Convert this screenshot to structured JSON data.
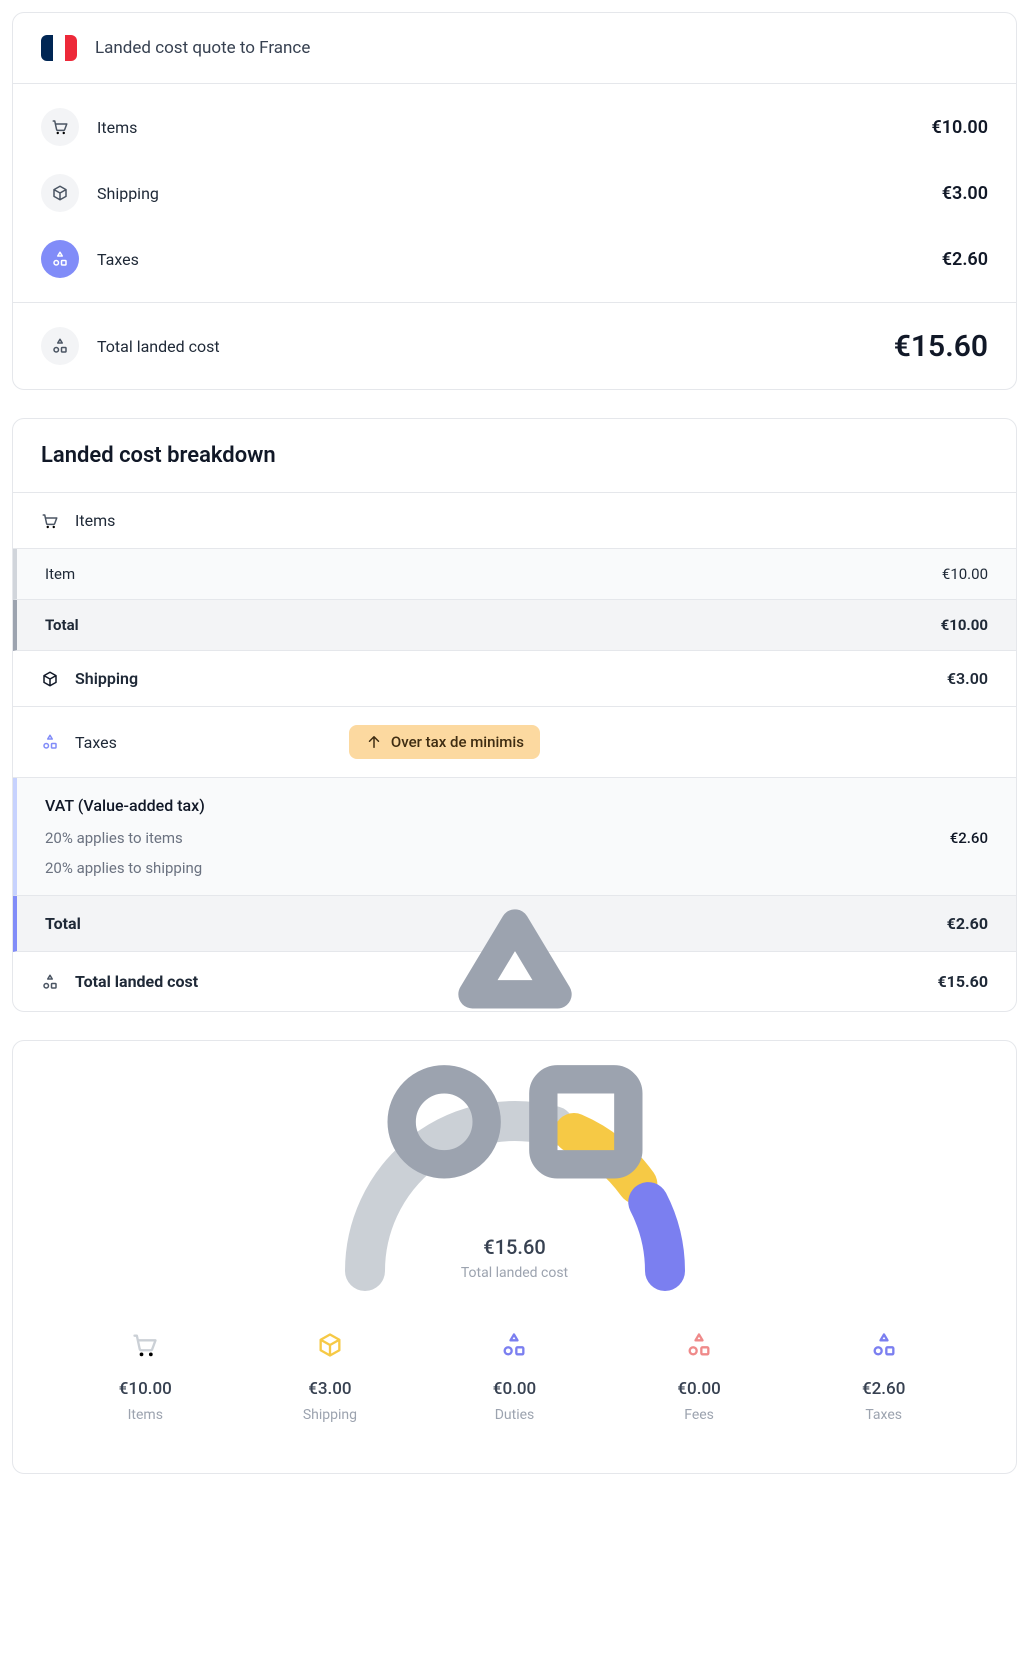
{
  "quote": {
    "title": "Landed cost quote to France",
    "flag_colors": [
      "#002654",
      "#ffffff",
      "#ed2939"
    ],
    "lines": {
      "items": {
        "label": "Items",
        "value": "€10.00"
      },
      "shipping": {
        "label": "Shipping",
        "value": "€3.00"
      },
      "taxes": {
        "label": "Taxes",
        "value": "€2.60"
      }
    },
    "total": {
      "label": "Total landed cost",
      "value": "€15.60"
    }
  },
  "breakdown": {
    "title": "Landed cost breakdown",
    "items_section": {
      "header": "Items",
      "rows": {
        "item": {
          "label": "Item",
          "value": "€10.00"
        },
        "total": {
          "label": "Total",
          "value": "€10.00"
        }
      }
    },
    "shipping_row": {
      "label": "Shipping",
      "value": "€3.00"
    },
    "taxes_section": {
      "header": "Taxes",
      "badge": "Over tax de minimis",
      "vat_title": "VAT (Value-added tax)",
      "vat_lines": {
        "items": {
          "label": "20% applies to items",
          "value": "€2.60"
        },
        "shipping": {
          "label": "20% applies to shipping",
          "value": ""
        }
      },
      "total": {
        "label": "Total",
        "value": "€2.60"
      }
    },
    "grand_total": {
      "label": "Total landed cost",
      "value": "€15.60"
    }
  },
  "gauge": {
    "center": {
      "value": "€15.60",
      "label": "Total landed cost"
    },
    "segments": [
      {
        "key": "items",
        "fraction": 0.641,
        "color": "#cbd0d6"
      },
      {
        "key": "shipping",
        "fraction": 0.1923,
        "color": "#f6c945"
      },
      {
        "key": "taxes",
        "fraction": 0.1667,
        "color": "#7b7ff0"
      }
    ],
    "arc": {
      "stroke_width": 40,
      "gap_deg": 8,
      "radius": 150
    },
    "stats": {
      "items": {
        "value": "€10.00",
        "label": "Items",
        "icon_color": "#cbd0d6"
      },
      "shipping": {
        "value": "€3.00",
        "label": "Shipping",
        "icon_color": "#f6c945"
      },
      "duties": {
        "value": "€0.00",
        "label": "Duties",
        "icon_color": "#7b7ff0"
      },
      "fees": {
        "value": "€0.00",
        "label": "Fees",
        "icon_color": "#ef8a8a"
      },
      "taxes": {
        "value": "€2.60",
        "label": "Taxes",
        "icon_color": "#7b7ff0"
      }
    }
  },
  "colors": {
    "accent": "#818cf8",
    "muted_bg": "#f9fafb",
    "border": "#e5e7eb",
    "text": "#1f2937",
    "text_muted": "#9ca3af"
  }
}
